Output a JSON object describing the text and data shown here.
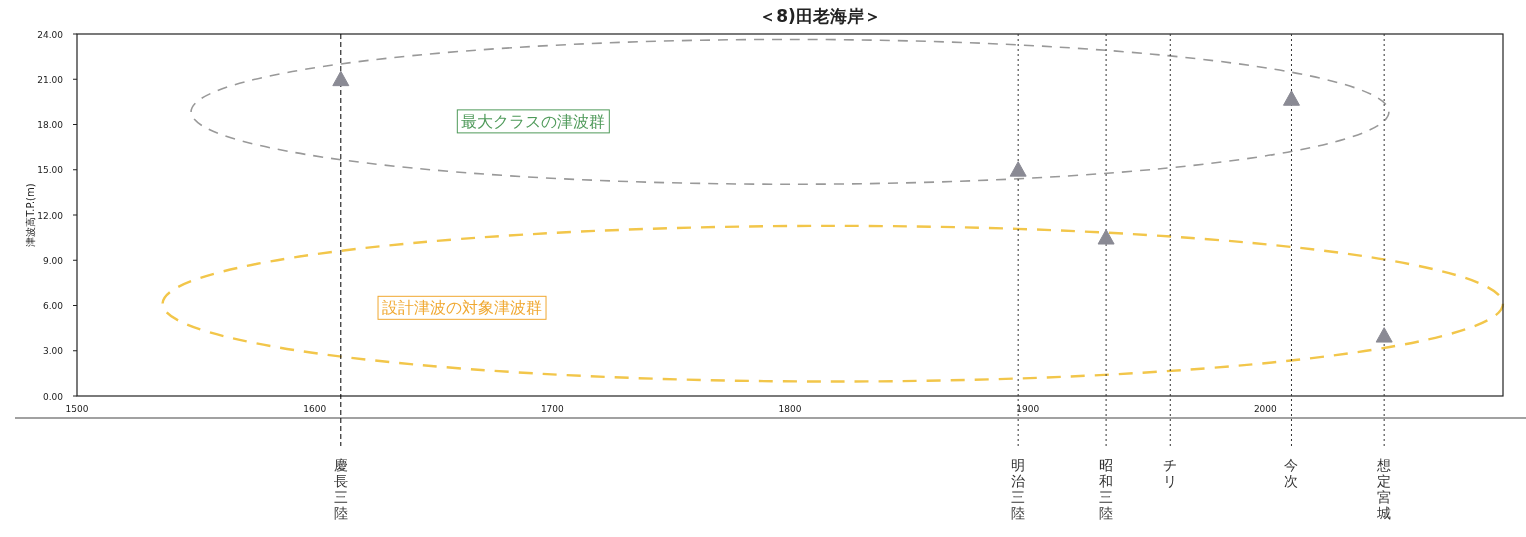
{
  "chart_data": {
    "type": "scatter",
    "title": "＜8)田老海岸＞",
    "ylabel": "津波高T.P.(m)",
    "x": [
      1611,
      1896,
      1933,
      2011,
      2050
    ],
    "series": [
      {
        "color": "#8a8a94",
        "values": [
          21,
          15,
          10.5,
          19.7,
          4
        ]
      }
    ],
    "marker": "triangle",
    "xlim": [
      1500,
      2100
    ],
    "ylim": [
      0,
      24
    ],
    "xticks": [
      1500,
      1600,
      1700,
      1800,
      1900,
      2000
    ],
    "yticks": [
      {
        "value": 0,
        "label": "0.00"
      },
      {
        "value": 3,
        "label": "3.00"
      },
      {
        "value": 6,
        "label": "6.00"
      },
      {
        "value": 9,
        "label": "9.00"
      },
      {
        "value": 12,
        "label": "12.00"
      },
      {
        "value": 15,
        "label": "15.00"
      },
      {
        "value": 18,
        "label": "18.00"
      },
      {
        "value": 21,
        "label": "21.00"
      },
      {
        "value": 24,
        "label": "24.00"
      }
    ],
    "ref_lines": [
      {
        "axis": "x",
        "value": 1611,
        "label": "慶長三陸",
        "line_style": "dashed",
        "color": "#000000"
      },
      {
        "axis": "x",
        "value": 1896,
        "label": "明治三陸",
        "line_style": "dotted",
        "color": "#333333"
      },
      {
        "axis": "x",
        "value": 1933,
        "label": "昭和三陸",
        "line_style": "dotted",
        "color": "#333333"
      },
      {
        "axis": "x",
        "value": 1960,
        "label": "チリ",
        "line_style": "dotted",
        "color": "#333333"
      },
      {
        "axis": "x",
        "value": 2011,
        "label": "今次",
        "line_style": "dotted",
        "color": "#333333"
      },
      {
        "axis": "x",
        "value": 2050,
        "label": "想定宮城",
        "line_style": "dotted",
        "color": "#333333"
      }
    ],
    "annotations": [
      "最大クラスの津波群",
      "設計津波の対象津波群"
    ]
  }
}
